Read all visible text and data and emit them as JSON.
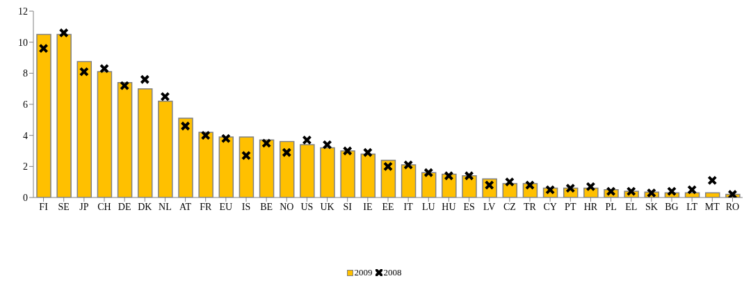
{
  "chart_data": {
    "type": "bar",
    "categories": [
      "FI",
      "SE",
      "JP",
      "CH",
      "DE",
      "DK",
      "NL",
      "AT",
      "FR",
      "EU",
      "IS",
      "BE",
      "NO",
      "US",
      "UK",
      "SI",
      "IE",
      "EE",
      "IT",
      "LU",
      "HU",
      "ES",
      "LV",
      "CZ",
      "TR",
      "CY",
      "PT",
      "HR",
      "PL",
      "EL",
      "SK",
      "BG",
      "LT",
      "MT",
      "RO"
    ],
    "series": [
      {
        "name": "2009",
        "color": "#ffc000",
        "values": [
          10.5,
          10.5,
          8.75,
          8.1,
          7.4,
          7.0,
          6.2,
          5.1,
          4.2,
          3.9,
          3.9,
          3.7,
          3.6,
          3.4,
          3.2,
          3.0,
          2.8,
          2.4,
          2.1,
          1.6,
          1.5,
          1.4,
          1.2,
          0.9,
          0.9,
          0.6,
          0.6,
          0.6,
          0.5,
          0.4,
          0.35,
          0.3,
          0.3,
          0.3,
          0.2
        ]
      },
      {
        "name": "2008",
        "type": "scatter",
        "marker": "cross",
        "color": "#000000",
        "values": [
          9.6,
          10.6,
          8.1,
          8.3,
          7.2,
          7.6,
          6.5,
          4.6,
          4.0,
          3.8,
          2.7,
          3.5,
          2.9,
          3.7,
          3.4,
          3.0,
          2.9,
          2.0,
          2.1,
          1.6,
          1.4,
          1.4,
          0.8,
          1.0,
          0.8,
          0.5,
          0.6,
          0.7,
          0.4,
          0.4,
          0.3,
          0.4,
          0.5,
          1.1,
          0.2
        ]
      }
    ],
    "ylim": [
      0,
      12
    ],
    "yticks": [
      0,
      2,
      4,
      6,
      8,
      10,
      12
    ],
    "grid": false,
    "legend": "bottom"
  }
}
